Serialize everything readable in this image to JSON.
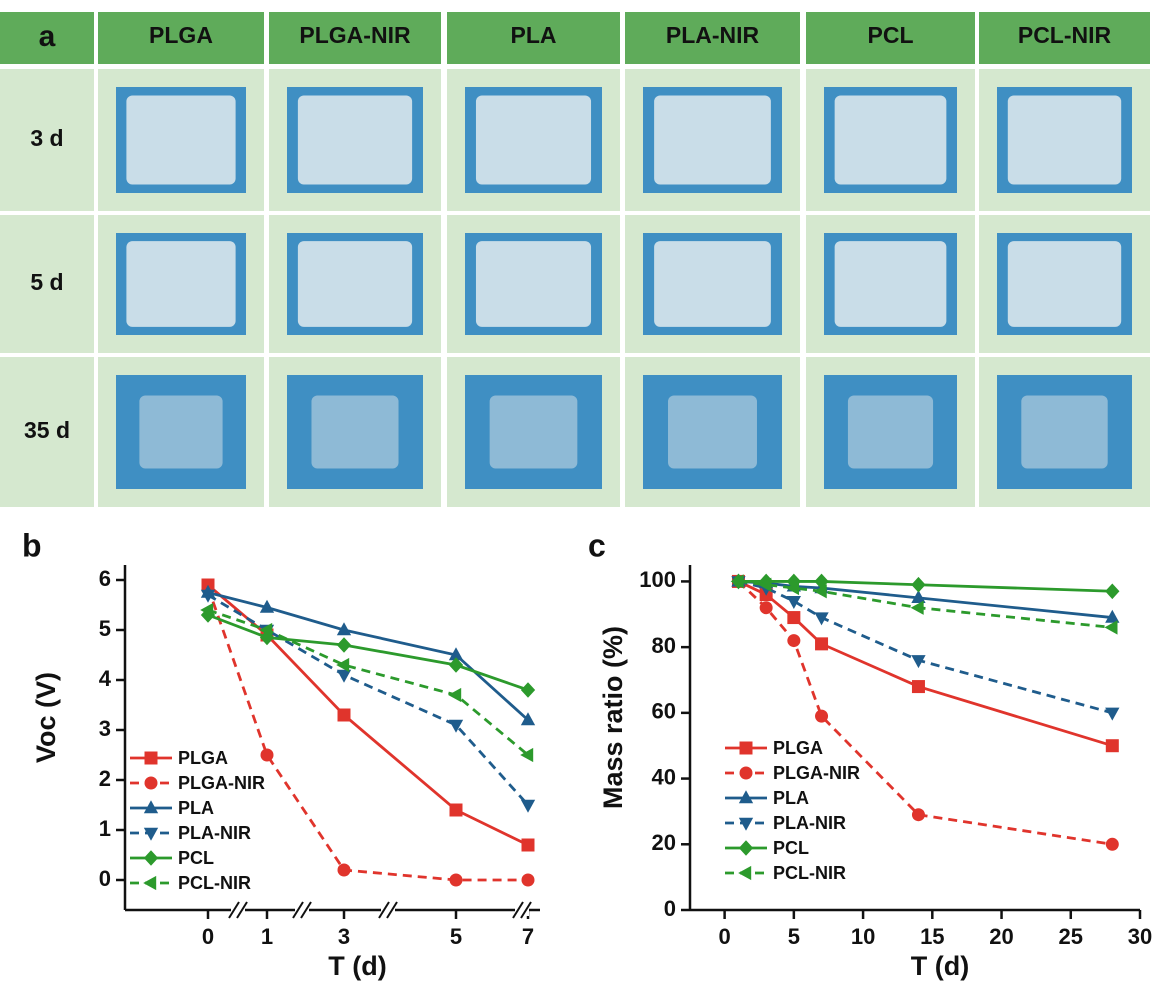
{
  "table": {
    "corner": "a",
    "columns": [
      "PLGA",
      "PLGA-NIR",
      "PLA",
      "PLA-NIR",
      "PCL",
      "PCL-NIR"
    ],
    "rows": [
      "3 d",
      "5 d",
      "35 d"
    ]
  },
  "chart_data": [
    {
      "type": "line",
      "panel_label": "b",
      "y_label": "Voc (V)",
      "x_label": "T (d)",
      "categories": [
        "0",
        "1",
        "3",
        "5",
        "7"
      ],
      "ylim": [
        -0.6,
        6.3
      ],
      "yticks": [
        0,
        1,
        2,
        3,
        4,
        5,
        6
      ],
      "legend": "lower left",
      "series": [
        {
          "name": "PLGA",
          "color": "#e0342c",
          "dashed": false,
          "marker": "square",
          "values": [
            5.9,
            4.9,
            3.3,
            1.4,
            0.7
          ]
        },
        {
          "name": "PLGA-NIR",
          "color": "#e0342c",
          "dashed": true,
          "marker": "circle",
          "values": [
            5.85,
            2.5,
            0.2,
            0.0,
            0.0
          ]
        },
        {
          "name": "PLA",
          "color": "#1f5c8c",
          "dashed": false,
          "marker": "triangle-up",
          "values": [
            5.75,
            5.45,
            5.0,
            4.5,
            3.2
          ]
        },
        {
          "name": "PLA-NIR",
          "color": "#1f5c8c",
          "dashed": true,
          "marker": "triangle-down",
          "values": [
            5.7,
            5.0,
            4.1,
            3.1,
            1.5
          ]
        },
        {
          "name": "PCL",
          "color": "#2c9a2c",
          "dashed": false,
          "marker": "diamond",
          "values": [
            5.3,
            4.85,
            4.7,
            4.3,
            3.8
          ]
        },
        {
          "name": "PCL-NIR",
          "color": "#2c9a2c",
          "dashed": true,
          "marker": "triangle-left",
          "values": [
            5.4,
            5.0,
            4.3,
            3.7,
            2.5
          ]
        }
      ]
    },
    {
      "type": "line",
      "panel_label": "c",
      "y_label": "Mass ratio (%)",
      "x_label": "T (d)",
      "x": [
        1,
        3,
        5,
        7,
        14,
        28
      ],
      "xlim": [
        -2.5,
        30
      ],
      "xticks": [
        0,
        5,
        10,
        15,
        20,
        25,
        30
      ],
      "ylim": [
        0,
        105
      ],
      "yticks": [
        0,
        20,
        40,
        60,
        80,
        100
      ],
      "legend": "lower left",
      "series": [
        {
          "name": "PLGA",
          "color": "#e0342c",
          "dashed": false,
          "marker": "square",
          "values": [
            100,
            96,
            89,
            81,
            68,
            50
          ]
        },
        {
          "name": "PLGA-NIR",
          "color": "#e0342c",
          "dashed": true,
          "marker": "circle",
          "values": [
            100,
            92,
            82,
            59,
            29,
            20
          ]
        },
        {
          "name": "PLA",
          "color": "#1f5c8c",
          "dashed": false,
          "marker": "triangle-up",
          "values": [
            100,
            99.5,
            98.5,
            98,
            95,
            89
          ]
        },
        {
          "name": "PLA-NIR",
          "color": "#1f5c8c",
          "dashed": true,
          "marker": "triangle-down",
          "values": [
            100,
            98,
            94,
            89,
            76,
            60
          ]
        },
        {
          "name": "PCL",
          "color": "#2c9a2c",
          "dashed": false,
          "marker": "diamond",
          "values": [
            100,
            100,
            100,
            100,
            99,
            97
          ]
        },
        {
          "name": "PCL-NIR",
          "color": "#2c9a2c",
          "dashed": true,
          "marker": "triangle-left",
          "values": [
            100,
            99,
            98,
            97,
            92,
            86
          ]
        }
      ]
    }
  ]
}
